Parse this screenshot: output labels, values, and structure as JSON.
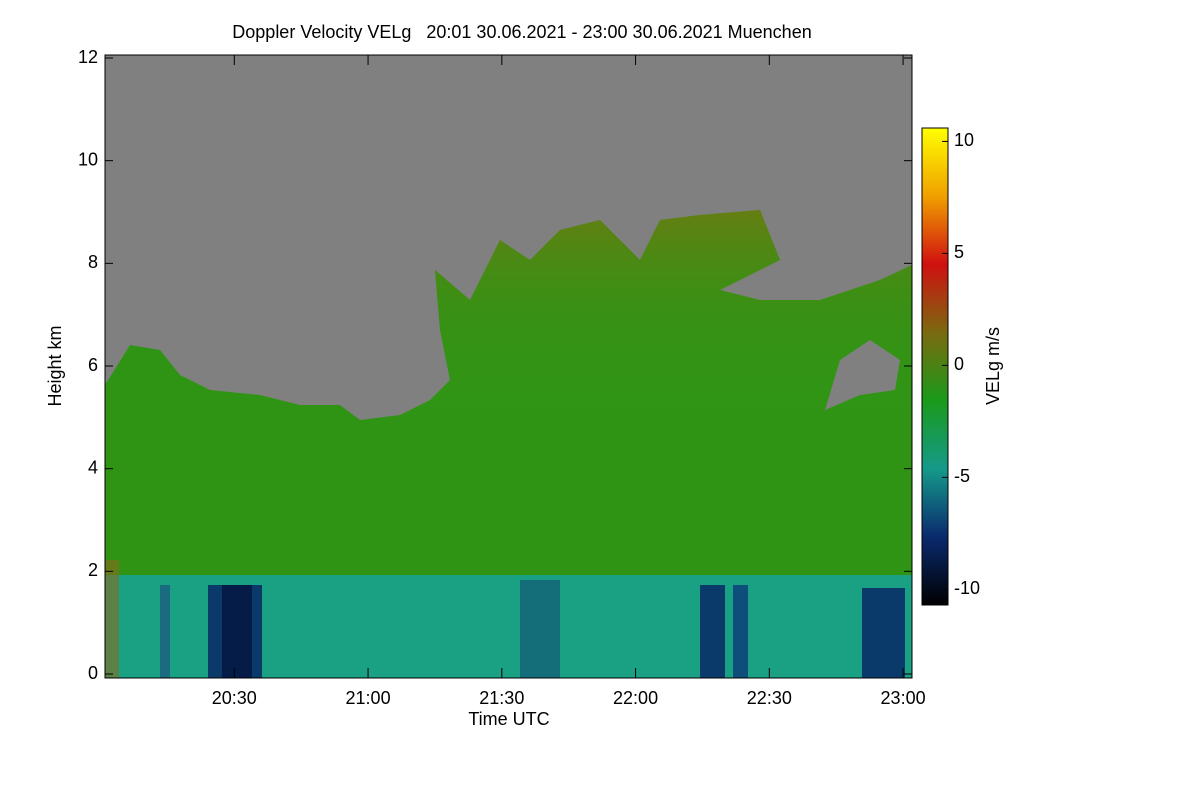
{
  "chart_data": {
    "type": "heatmap",
    "title": "Doppler Velocity VELg   20:01 30.06.2021 - 23:00 30.06.2021 Muenchen",
    "x_label": "Time UTC",
    "y_label": "Height km",
    "colorbar_label": "VELg m/s",
    "xlim": [
      "20:01",
      "23:02"
    ],
    "xticks": [
      "20:30",
      "21:00",
      "21:30",
      "22:00",
      "22:30",
      "23:00"
    ],
    "ylim": [
      0,
      12
    ],
    "yticks": [
      0,
      2,
      4,
      6,
      8,
      10,
      12
    ],
    "zlim": [
      -10.7,
      10.6
    ],
    "zticks": [
      -10,
      -5,
      0,
      5,
      10
    ],
    "colormap": [
      "#000000",
      "#0a2a6e",
      "#159a8a",
      "#1a9a1a",
      "#7a6a10",
      "#d01010",
      "#f0a000",
      "#ffff00"
    ]
  }
}
